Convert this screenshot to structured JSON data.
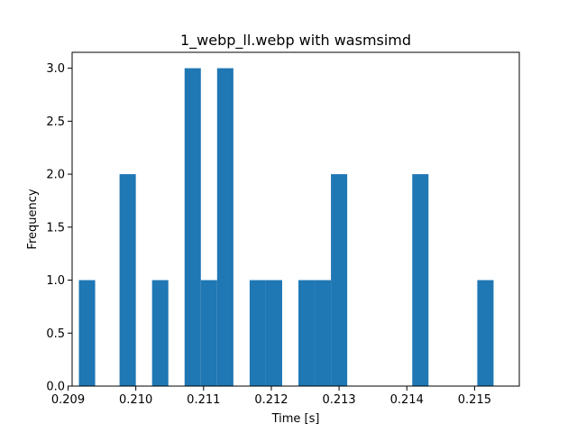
{
  "chart_data": {
    "type": "bar",
    "title": "1_webp_ll.webp with wasmsimd",
    "xlabel": "Time [s]",
    "ylabel": "Frequency",
    "xlim": [
      0.20906,
      0.21566
    ],
    "ylim": [
      0,
      3.15
    ],
    "bin_width": 0.00024,
    "grid": false,
    "bar_color": "#1f77b4",
    "x_ticks": [
      {
        "value": 0.209,
        "label": "0.209"
      },
      {
        "value": 0.21,
        "label": "0.210"
      },
      {
        "value": 0.211,
        "label": "0.211"
      },
      {
        "value": 0.212,
        "label": "0.212"
      },
      {
        "value": 0.213,
        "label": "0.213"
      },
      {
        "value": 0.214,
        "label": "0.214"
      },
      {
        "value": 0.215,
        "label": "0.215"
      }
    ],
    "y_ticks": [
      {
        "value": 0.0,
        "label": "0.0"
      },
      {
        "value": 0.5,
        "label": "0.5"
      },
      {
        "value": 1.0,
        "label": "1.0"
      },
      {
        "value": 1.5,
        "label": "1.5"
      },
      {
        "value": 2.0,
        "label": "2.0"
      },
      {
        "value": 2.5,
        "label": "2.5"
      },
      {
        "value": 3.0,
        "label": "3.0"
      }
    ],
    "bins": [
      {
        "start": 0.20916,
        "count": 1
      },
      {
        "start": 0.20964,
        "count": 0
      },
      {
        "start": 0.20976,
        "count": 2
      },
      {
        "start": 0.21024,
        "count": 1
      },
      {
        "start": 0.21072,
        "count": 3
      },
      {
        "start": 0.21096,
        "count": 1
      },
      {
        "start": 0.2112,
        "count": 3
      },
      {
        "start": 0.21168,
        "count": 1
      },
      {
        "start": 0.21192,
        "count": 1
      },
      {
        "start": 0.2124,
        "count": 1
      },
      {
        "start": 0.21264,
        "count": 1
      },
      {
        "start": 0.21288,
        "count": 2
      },
      {
        "start": 0.21408,
        "count": 2
      },
      {
        "start": 0.21504,
        "count": 1
      }
    ]
  }
}
